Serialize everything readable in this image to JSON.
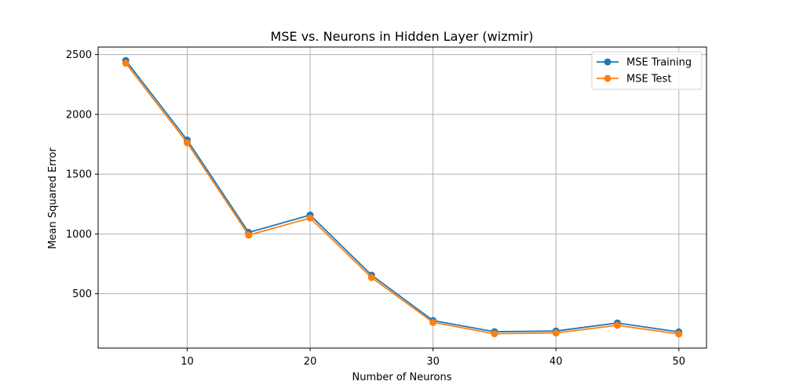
{
  "chart_data": {
    "type": "line",
    "title": "MSE vs. Neurons in Hidden Layer (wizmir)",
    "xlabel": "Number of Neurons",
    "ylabel": "Mean Squared Error",
    "x": [
      5,
      10,
      15,
      20,
      25,
      30,
      35,
      40,
      45,
      50
    ],
    "xlim": [
      2.75,
      52.25
    ],
    "ylim": [
      45,
      2563
    ],
    "xticks": [
      10,
      20,
      30,
      40,
      50
    ],
    "yticks": [
      500,
      1000,
      1500,
      2000,
      2500
    ],
    "grid": true,
    "legend_position": "top-right",
    "series": [
      {
        "name": "MSE Training",
        "color": "#1f77b4",
        "values": [
          2450,
          1785,
          1012,
          1158,
          655,
          275,
          182,
          188,
          255,
          180
        ]
      },
      {
        "name": "MSE Test",
        "color": "#ff7f0e",
        "values": [
          2428,
          1762,
          990,
          1133,
          635,
          260,
          165,
          172,
          235,
          163
        ]
      }
    ]
  }
}
